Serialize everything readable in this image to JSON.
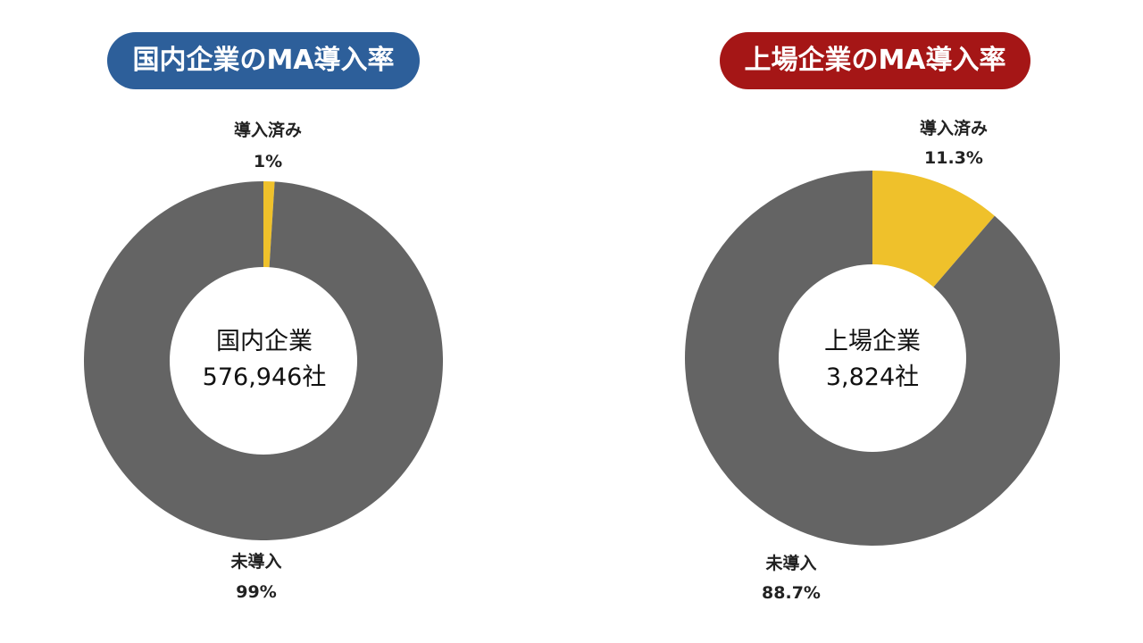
{
  "colors": {
    "adopted": "#efc12b",
    "not_adopted": "#646464",
    "hole": "#ffffff"
  },
  "chart_data": [
    {
      "type": "pie",
      "title": "国内企業のMA導入率",
      "title_color": "#2d5f9a",
      "center_label": "国内企業",
      "center_value": "576,946社",
      "slices": [
        {
          "label": "導入済み",
          "value": 1,
          "value_label": "1%"
        },
        {
          "label": "未導入",
          "value": 99,
          "value_label": "99%"
        }
      ]
    },
    {
      "type": "pie",
      "title": "上場企業のMA導入率",
      "title_color": "#a51616",
      "center_label": "上場企業",
      "center_value": "3,824社",
      "slices": [
        {
          "label": "導入済み",
          "value": 11.3,
          "value_label": "11.3%"
        },
        {
          "label": "未導入",
          "value": 88.7,
          "value_label": "88.7%"
        }
      ]
    }
  ]
}
